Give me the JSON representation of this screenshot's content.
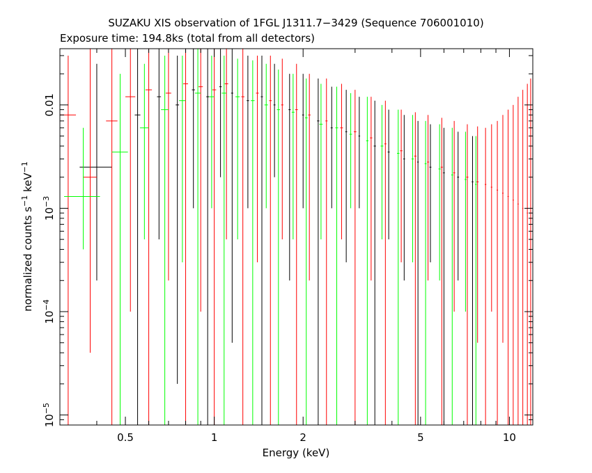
{
  "chart_data": {
    "type": "scatter",
    "title": "SUZAKU XIS observation of 1FGL J1311.7−3429 (Sequence 706001010)",
    "subtitle": "Exposure time: 194.8ks (total from all detectors)",
    "xlabel": "Energy (keV)",
    "ylabel": {
      "base": "normalized counts s",
      "sup1": "−1",
      "mid": " keV",
      "sup2": "−1"
    },
    "x_scale": "log",
    "y_scale": "log",
    "xlim": [
      0.3,
      12
    ],
    "ylim": [
      8e-06,
      0.035
    ],
    "grid": false,
    "x_ticks": [
      {
        "value": 0.5,
        "label": "0.5"
      },
      {
        "value": 1,
        "label": "1"
      },
      {
        "value": 2,
        "label": "2"
      },
      {
        "value": 5,
        "label": "5"
      },
      {
        "value": 10,
        "label": "10"
      }
    ],
    "y_ticks": [
      {
        "value": 0.01,
        "label": "0.01",
        "base": "0.01",
        "exp": ""
      },
      {
        "value": 0.001,
        "label": "10^-3",
        "base": "10",
        "exp": "−3"
      },
      {
        "value": 0.0001,
        "label": "10^-4",
        "base": "10",
        "exp": "−4"
      },
      {
        "value": 1e-05,
        "label": "10^-5",
        "base": "10",
        "exp": "−5"
      }
    ],
    "series": [
      {
        "color": "#000000",
        "points": [
          {
            "x": 0.4,
            "y": 0.0025,
            "dx": 0.05,
            "lo": 0.0002,
            "hi": 0.025
          },
          {
            "x": 0.55,
            "y": 0.008,
            "dx": 0.012,
            "lo": 8e-06,
            "hi": 0.035
          },
          {
            "x": 0.65,
            "y": 0.012,
            "dx": 0.01,
            "lo": 0.0005,
            "hi": 0.035
          },
          {
            "x": 0.75,
            "y": 0.01,
            "dx": 0.01,
            "lo": 2e-05,
            "hi": 0.03
          },
          {
            "x": 0.85,
            "y": 0.014,
            "dx": 0.01,
            "lo": 0.001,
            "hi": 0.035
          },
          {
            "x": 0.95,
            "y": 0.012,
            "dx": 0.01,
            "lo": 8e-06,
            "hi": 0.035
          },
          {
            "x": 1.05,
            "y": 0.015,
            "dx": 0.01,
            "lo": 0.002,
            "hi": 0.035
          },
          {
            "x": 1.15,
            "y": 0.013,
            "dx": 0.01,
            "lo": 5e-05,
            "hi": 0.035
          },
          {
            "x": 1.3,
            "y": 0.011,
            "dx": 0.012,
            "lo": 0.001,
            "hi": 0.03
          },
          {
            "x": 1.45,
            "y": 0.012,
            "dx": 0.012,
            "lo": 8e-06,
            "hi": 0.03
          },
          {
            "x": 1.6,
            "y": 0.01,
            "dx": 0.012,
            "lo": 0.002,
            "hi": 0.025
          },
          {
            "x": 1.8,
            "y": 0.009,
            "dx": 0.015,
            "lo": 0.0002,
            "hi": 0.02
          },
          {
            "x": 2.0,
            "y": 0.008,
            "dx": 0.015,
            "lo": 0.001,
            "hi": 0.02
          },
          {
            "x": 2.25,
            "y": 0.007,
            "dx": 0.02,
            "lo": 8e-06,
            "hi": 0.018
          },
          {
            "x": 2.5,
            "y": 0.006,
            "dx": 0.02,
            "lo": 0.001,
            "hi": 0.015
          },
          {
            "x": 2.8,
            "y": 0.0055,
            "dx": 0.02,
            "lo": 0.0003,
            "hi": 0.014
          },
          {
            "x": 3.1,
            "y": 0.005,
            "dx": 0.02,
            "lo": 0.001,
            "hi": 0.012
          },
          {
            "x": 3.5,
            "y": 0.004,
            "dx": 0.03,
            "lo": 8e-06,
            "hi": 0.011
          },
          {
            "x": 3.9,
            "y": 0.0035,
            "dx": 0.03,
            "lo": 0.0005,
            "hi": 0.009
          },
          {
            "x": 4.4,
            "y": 0.003,
            "dx": 0.03,
            "lo": 0.0002,
            "hi": 0.008
          },
          {
            "x": 4.9,
            "y": 0.0028,
            "dx": 0.03,
            "lo": 8e-06,
            "hi": 0.007
          },
          {
            "x": 5.4,
            "y": 0.0025,
            "dx": 0.04,
            "lo": 0.0003,
            "hi": 0.0065
          },
          {
            "x": 6.0,
            "y": 0.0022,
            "dx": 0.04,
            "lo": 8e-06,
            "hi": 0.006
          },
          {
            "x": 6.7,
            "y": 0.002,
            "dx": 0.05,
            "lo": 0.0002,
            "hi": 0.0055
          },
          {
            "x": 7.5,
            "y": 0.0018,
            "dx": 0.05,
            "lo": 8e-06,
            "hi": 0.005
          }
        ]
      },
      {
        "color": "#ff0000",
        "points": [
          {
            "x": 0.32,
            "y": 0.008,
            "dx": 0.02,
            "lo": 8e-06,
            "hi": 0.03
          },
          {
            "x": 0.38,
            "y": 0.002,
            "dx": 0.02,
            "lo": 4e-05,
            "hi": 0.035
          },
          {
            "x": 0.45,
            "y": 0.007,
            "dx": 0.02,
            "lo": 8e-06,
            "hi": 0.035
          },
          {
            "x": 0.52,
            "y": 0.012,
            "dx": 0.02,
            "lo": 0.0001,
            "hi": 0.035
          },
          {
            "x": 0.6,
            "y": 0.014,
            "dx": 0.015,
            "lo": 8e-06,
            "hi": 0.035
          },
          {
            "x": 0.7,
            "y": 0.013,
            "dx": 0.015,
            "lo": 0.0002,
            "hi": 0.035
          },
          {
            "x": 0.8,
            "y": 0.016,
            "dx": 0.015,
            "lo": 8e-06,
            "hi": 0.035
          },
          {
            "x": 0.9,
            "y": 0.015,
            "dx": 0.015,
            "lo": 0.0001,
            "hi": 0.035
          },
          {
            "x": 1.0,
            "y": 0.014,
            "dx": 0.015,
            "lo": 8e-06,
            "hi": 0.035
          },
          {
            "x": 1.1,
            "y": 0.016,
            "dx": 0.015,
            "lo": 0.0005,
            "hi": 0.035
          },
          {
            "x": 1.25,
            "y": 0.012,
            "dx": 0.015,
            "lo": 8e-06,
            "hi": 0.035
          },
          {
            "x": 1.4,
            "y": 0.013,
            "dx": 0.015,
            "lo": 0.0003,
            "hi": 0.03
          },
          {
            "x": 1.55,
            "y": 0.011,
            "dx": 0.015,
            "lo": 8e-06,
            "hi": 0.03
          },
          {
            "x": 1.7,
            "y": 0.01,
            "dx": 0.015,
            "lo": 0.0005,
            "hi": 0.028
          },
          {
            "x": 1.9,
            "y": 0.009,
            "dx": 0.02,
            "lo": 8e-06,
            "hi": 0.025
          },
          {
            "x": 2.1,
            "y": 0.008,
            "dx": 0.02,
            "lo": 0.0002,
            "hi": 0.02
          },
          {
            "x": 2.4,
            "y": 0.007,
            "dx": 0.02,
            "lo": 8e-06,
            "hi": 0.018
          },
          {
            "x": 2.7,
            "y": 0.006,
            "dx": 0.03,
            "lo": 0.0005,
            "hi": 0.016
          },
          {
            "x": 3.0,
            "y": 0.0055,
            "dx": 0.03,
            "lo": 8e-06,
            "hi": 0.014
          },
          {
            "x": 3.4,
            "y": 0.0048,
            "dx": 0.03,
            "lo": 0.0002,
            "hi": 0.012
          },
          {
            "x": 3.8,
            "y": 0.0042,
            "dx": 0.03,
            "lo": 8e-06,
            "hi": 0.011
          },
          {
            "x": 4.3,
            "y": 0.0036,
            "dx": 0.04,
            "lo": 0.0003,
            "hi": 0.009
          },
          {
            "x": 4.8,
            "y": 0.0032,
            "dx": 0.04,
            "lo": 8e-06,
            "hi": 0.0085
          },
          {
            "x": 5.3,
            "y": 0.0028,
            "dx": 0.04,
            "lo": 0.0002,
            "hi": 0.008
          },
          {
            "x": 5.9,
            "y": 0.0025,
            "dx": 0.05,
            "lo": 8e-06,
            "hi": 0.0075
          },
          {
            "x": 6.5,
            "y": 0.0022,
            "dx": 0.05,
            "lo": 0.0001,
            "hi": 0.007
          },
          {
            "x": 7.2,
            "y": 0.002,
            "dx": 0.06,
            "lo": 8e-06,
            "hi": 0.0065
          },
          {
            "x": 7.8,
            "y": 0.0018,
            "dx": 0.06,
            "lo": 5e-05,
            "hi": 0.0062
          },
          {
            "x": 8.3,
            "y": 0.0017,
            "dx": 0.05,
            "lo": 8e-06,
            "hi": 0.006
          },
          {
            "x": 8.7,
            "y": 0.0016,
            "dx": 0.05,
            "lo": 0.0001,
            "hi": 0.0065
          },
          {
            "x": 9.1,
            "y": 0.0015,
            "dx": 0.05,
            "lo": 8e-06,
            "hi": 0.007
          },
          {
            "x": 9.5,
            "y": 0.0014,
            "dx": 0.05,
            "lo": 5e-05,
            "hi": 0.008
          },
          {
            "x": 9.9,
            "y": 0.0013,
            "dx": 0.05,
            "lo": 8e-06,
            "hi": 0.009
          },
          {
            "x": 10.3,
            "y": 0.0012,
            "dx": 0.05,
            "lo": 8e-06,
            "hi": 0.01
          },
          {
            "x": 10.7,
            "y": 0.0011,
            "dx": 0.05,
            "lo": 8e-06,
            "hi": 0.012
          },
          {
            "x": 11.1,
            "y": 0.001,
            "dx": 0.05,
            "lo": 8e-06,
            "hi": 0.014
          },
          {
            "x": 11.5,
            "y": 0.0009,
            "dx": 0.05,
            "lo": 8e-06,
            "hi": 0.016
          },
          {
            "x": 11.8,
            "y": 0.0008,
            "dx": 0.05,
            "lo": 8e-06,
            "hi": 0.018
          }
        ]
      },
      {
        "color": "#00ff00",
        "points": [
          {
            "x": 0.36,
            "y": 0.0013,
            "dx": 0.05,
            "lo": 0.0004,
            "hi": 0.006
          },
          {
            "x": 0.48,
            "y": 0.0035,
            "dx": 0.03,
            "lo": 8e-06,
            "hi": 0.02
          },
          {
            "x": 0.58,
            "y": 0.006,
            "dx": 0.02,
            "lo": 0.0005,
            "hi": 0.025
          },
          {
            "x": 0.68,
            "y": 0.009,
            "dx": 0.02,
            "lo": 8e-06,
            "hi": 0.03
          },
          {
            "x": 0.78,
            "y": 0.011,
            "dx": 0.02,
            "lo": 0.0003,
            "hi": 0.03
          },
          {
            "x": 0.88,
            "y": 0.013,
            "dx": 0.02,
            "lo": 8e-06,
            "hi": 0.035
          },
          {
            "x": 0.98,
            "y": 0.012,
            "dx": 0.02,
            "lo": 0.001,
            "hi": 0.03
          },
          {
            "x": 1.08,
            "y": 0.013,
            "dx": 0.02,
            "lo": 8e-06,
            "hi": 0.03
          },
          {
            "x": 1.2,
            "y": 0.012,
            "dx": 0.02,
            "lo": 0.0005,
            "hi": 0.028
          },
          {
            "x": 1.35,
            "y": 0.011,
            "dx": 0.02,
            "lo": 8e-06,
            "hi": 0.027
          },
          {
            "x": 1.5,
            "y": 0.01,
            "dx": 0.02,
            "lo": 0.001,
            "hi": 0.025
          },
          {
            "x": 1.65,
            "y": 0.009,
            "dx": 0.02,
            "lo": 8e-06,
            "hi": 0.022
          },
          {
            "x": 1.85,
            "y": 0.0085,
            "dx": 0.02,
            "lo": 0.0005,
            "hi": 0.02
          },
          {
            "x": 2.05,
            "y": 0.0075,
            "dx": 0.02,
            "lo": 8e-06,
            "hi": 0.018
          },
          {
            "x": 2.3,
            "y": 0.0065,
            "dx": 0.03,
            "lo": 0.0005,
            "hi": 0.016
          },
          {
            "x": 2.6,
            "y": 0.006,
            "dx": 0.03,
            "lo": 8e-06,
            "hi": 0.015
          },
          {
            "x": 2.9,
            "y": 0.0052,
            "dx": 0.03,
            "lo": 0.001,
            "hi": 0.013
          },
          {
            "x": 3.3,
            "y": 0.0045,
            "dx": 0.03,
            "lo": 8e-06,
            "hi": 0.012
          },
          {
            "x": 3.7,
            "y": 0.004,
            "dx": 0.04,
            "lo": 0.0005,
            "hi": 0.01
          },
          {
            "x": 4.2,
            "y": 0.0034,
            "dx": 0.04,
            "lo": 8e-06,
            "hi": 0.009
          },
          {
            "x": 4.7,
            "y": 0.003,
            "dx": 0.04,
            "lo": 0.0003,
            "hi": 0.008
          },
          {
            "x": 5.2,
            "y": 0.0027,
            "dx": 0.04,
            "lo": 8e-06,
            "hi": 0.007
          },
          {
            "x": 5.8,
            "y": 0.0024,
            "dx": 0.05,
            "lo": 0.0002,
            "hi": 0.0065
          },
          {
            "x": 6.4,
            "y": 0.0021,
            "dx": 0.05,
            "lo": 8e-06,
            "hi": 0.006
          },
          {
            "x": 7.1,
            "y": 0.0019,
            "dx": 0.05,
            "lo": 0.0001,
            "hi": 0.0055
          },
          {
            "x": 7.7,
            "y": 0.0017,
            "dx": 0.05,
            "lo": 8e-06,
            "hi": 0.005
          }
        ]
      }
    ]
  }
}
